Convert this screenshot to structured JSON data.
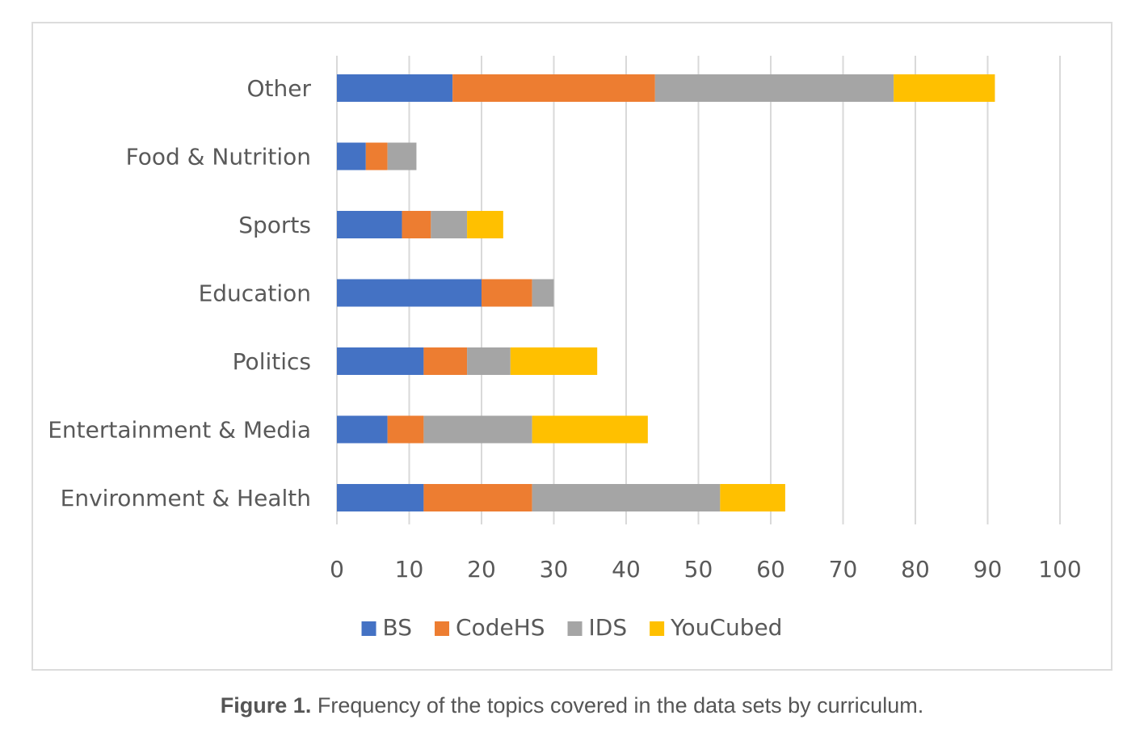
{
  "chart_data": {
    "type": "bar",
    "orientation": "horizontal",
    "stacked": true,
    "categories": [
      "Other",
      "Food & Nutrition",
      "Sports",
      "Education",
      "Politics",
      "Entertainment & Media",
      "Environment & Health"
    ],
    "series": [
      {
        "name": "BS",
        "color": "#4472C4",
        "values": [
          16,
          4,
          9,
          20,
          12,
          7,
          12
        ]
      },
      {
        "name": "CodeHS",
        "color": "#ED7D31",
        "values": [
          28,
          3,
          4,
          7,
          6,
          5,
          15
        ]
      },
      {
        "name": "IDS",
        "color": "#A5A5A5",
        "values": [
          33,
          4,
          5,
          3,
          6,
          15,
          26
        ]
      },
      {
        "name": "YouCubed",
        "color": "#FFC000",
        "values": [
          14,
          0,
          5,
          0,
          12,
          16,
          9
        ]
      }
    ],
    "x_ticks": [
      "0",
      "10",
      "20",
      "30",
      "40",
      "50",
      "60",
      "70",
      "80",
      "90",
      "100"
    ],
    "xlim": [
      0,
      100
    ],
    "grid": true,
    "legend_position": "bottom"
  },
  "caption": {
    "label": "Figure 1.",
    "text": " Frequency of the topics covered in the data sets by curriculum."
  }
}
